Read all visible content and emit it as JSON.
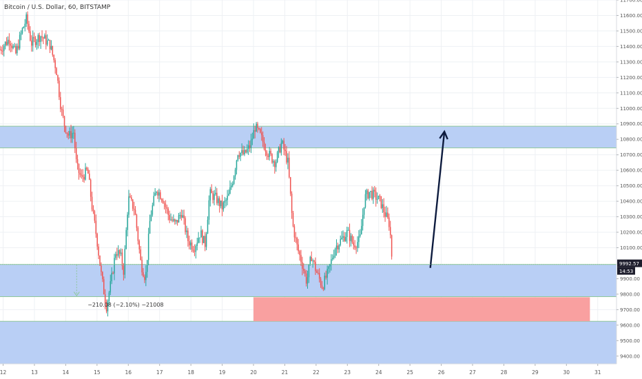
{
  "header": {
    "title": "Bitcoin / U.S. Dollar, 60, BITSTAMP"
  },
  "chart_data": {
    "type": "candlestick",
    "title": "Bitcoin / U.S. Dollar, 60, BITSTAMP",
    "xlabel": "",
    "ylabel": "",
    "grid": true,
    "ylim": [
      9350,
      11700
    ],
    "xlim": [
      11.9,
      31.6
    ],
    "x_ticks": [
      {
        "value": 12,
        "label": "12"
      },
      {
        "value": 13,
        "label": "13"
      },
      {
        "value": 14,
        "label": "14"
      },
      {
        "value": 15,
        "label": "15"
      },
      {
        "value": 16,
        "label": "16"
      },
      {
        "value": 17,
        "label": "17"
      },
      {
        "value": 18,
        "label": "18"
      },
      {
        "value": 19,
        "label": "19"
      },
      {
        "value": 20,
        "label": "20"
      },
      {
        "value": 21,
        "label": "21"
      },
      {
        "value": 22,
        "label": "22"
      },
      {
        "value": 23,
        "label": "23"
      },
      {
        "value": 24,
        "label": "24"
      },
      {
        "value": 25,
        "label": "25"
      },
      {
        "value": 26,
        "label": "26"
      },
      {
        "value": 27,
        "label": "27"
      },
      {
        "value": 28,
        "label": "28"
      },
      {
        "value": 29,
        "label": "29"
      },
      {
        "value": 30,
        "label": "30"
      },
      {
        "value": 31,
        "label": "31"
      }
    ],
    "y_ticks": [
      {
        "value": 9400,
        "label": "9400.00"
      },
      {
        "value": 9500,
        "label": "9500.00"
      },
      {
        "value": 9600,
        "label": "9600.00"
      },
      {
        "value": 9700,
        "label": "9700.00"
      },
      {
        "value": 9800,
        "label": "9800.00"
      },
      {
        "value": 9900,
        "label": "9900.00"
      },
      {
        "value": 10100,
        "label": "10100.00"
      },
      {
        "value": 10200,
        "label": "10200.00"
      },
      {
        "value": 10300,
        "label": "10300.00"
      },
      {
        "value": 10400,
        "label": "10400.00"
      },
      {
        "value": 10500,
        "label": "10500.00"
      },
      {
        "value": 10600,
        "label": "10600.00"
      },
      {
        "value": 10700,
        "label": "10700.00"
      },
      {
        "value": 10800,
        "label": "10800.00"
      },
      {
        "value": 10900,
        "label": "10900.00"
      },
      {
        "value": 11000,
        "label": "11000.00"
      },
      {
        "value": 11100,
        "label": "11100.00"
      },
      {
        "value": 11200,
        "label": "11200.00"
      },
      {
        "value": 11300,
        "label": "11300.00"
      },
      {
        "value": 11400,
        "label": "11400.00"
      },
      {
        "value": 11500,
        "label": "11500.00"
      },
      {
        "value": 11600,
        "label": "11600.00"
      },
      {
        "value": 11700,
        "label": "11700.00"
      }
    ],
    "price_path": [
      [
        11.9,
        11380
      ],
      [
        12.2,
        11450
      ],
      [
        12.4,
        11350
      ],
      [
        12.6,
        11500
      ],
      [
        12.75,
        11580
      ],
      [
        12.9,
        11420
      ],
      [
        13.2,
        11470
      ],
      [
        13.5,
        11410
      ],
      [
        13.7,
        11250
      ],
      [
        13.85,
        11000
      ],
      [
        13.95,
        10900
      ],
      [
        14.1,
        10820
      ],
      [
        14.25,
        10850
      ],
      [
        14.35,
        10620
      ],
      [
        14.5,
        10550
      ],
      [
        14.7,
        10600
      ],
      [
        14.85,
        10350
      ],
      [
        15.0,
        10150
      ],
      [
        15.15,
        9900
      ],
      [
        15.3,
        9720
      ],
      [
        15.45,
        9880
      ],
      [
        15.6,
        10080
      ],
      [
        15.75,
        10050
      ],
      [
        15.85,
        9950
      ],
      [
        16.0,
        10420
      ],
      [
        16.2,
        10350
      ],
      [
        16.4,
        10000
      ],
      [
        16.55,
        9900
      ],
      [
        16.7,
        10300
      ],
      [
        16.9,
        10480
      ],
      [
        17.1,
        10420
      ],
      [
        17.3,
        10300
      ],
      [
        17.5,
        10250
      ],
      [
        17.7,
        10330
      ],
      [
        17.9,
        10150
      ],
      [
        18.1,
        10100
      ],
      [
        18.3,
        10200
      ],
      [
        18.45,
        10120
      ],
      [
        18.6,
        10450
      ],
      [
        18.8,
        10420
      ],
      [
        19.0,
        10360
      ],
      [
        19.2,
        10430
      ],
      [
        19.35,
        10550
      ],
      [
        19.5,
        10720
      ],
      [
        19.7,
        10700
      ],
      [
        19.9,
        10760
      ],
      [
        20.05,
        10880
      ],
      [
        20.2,
        10830
      ],
      [
        20.35,
        10760
      ],
      [
        20.5,
        10700
      ],
      [
        20.7,
        10650
      ],
      [
        20.9,
        10780
      ],
      [
        21.1,
        10650
      ],
      [
        21.25,
        10250
      ],
      [
        21.4,
        10100
      ],
      [
        21.55,
        10000
      ],
      [
        21.7,
        9880
      ],
      [
        21.85,
        10050
      ],
      [
        22.0,
        9950
      ],
      [
        22.2,
        9850
      ],
      [
        22.4,
        9950
      ],
      [
        22.6,
        10100
      ],
      [
        22.8,
        10150
      ],
      [
        23.0,
        10200
      ],
      [
        23.2,
        10120
      ],
      [
        23.4,
        10150
      ],
      [
        23.55,
        10420
      ],
      [
        23.7,
        10460
      ],
      [
        23.9,
        10430
      ],
      [
        24.05,
        10400
      ],
      [
        24.2,
        10320
      ],
      [
        24.35,
        10250
      ],
      [
        24.45,
        9950
      ]
    ],
    "zones": [
      {
        "type": "support-resistance",
        "from": 10745,
        "to": 10885,
        "x_from": 11.9,
        "x_to": 31.6,
        "color": "#b9cff5"
      },
      {
        "type": "support-resistance",
        "from": 9784,
        "to": 9992,
        "x_from": 11.9,
        "x_to": 31.6,
        "color": "#b9cff5"
      },
      {
        "type": "support-resistance",
        "from": 9340,
        "to": 9625,
        "x_from": 11.9,
        "x_to": 31.6,
        "color": "#b9cff5"
      },
      {
        "type": "target",
        "from": 9625,
        "to": 9780,
        "x_from": 20.0,
        "x_to": 30.75,
        "color": "#f9a0a0"
      }
    ],
    "arrow": {
      "from": [
        25.65,
        9970
      ],
      "to": [
        26.1,
        10850
      ],
      "color": "#0d1b3e"
    },
    "annotations": [
      {
        "text": "−210.08 (−2.10%) −21008",
        "x": 14.7,
        "y": 9720
      }
    ],
    "current_price": {
      "value": 9992.57,
      "label": "9992.57",
      "countdown": "14:53"
    }
  }
}
